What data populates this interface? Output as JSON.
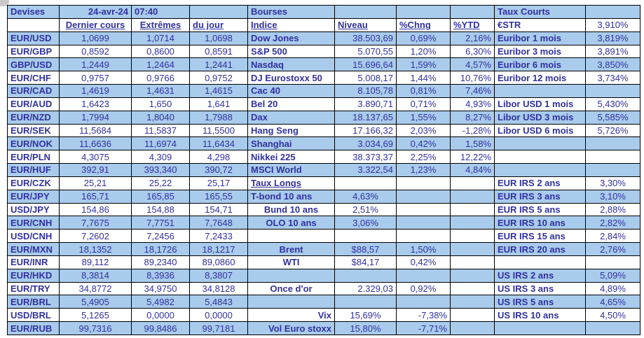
{
  "colors": {
    "row_blue": "#a9cbec",
    "text": "#3131a0",
    "border": "#000000"
  },
  "devises": {
    "title": "Devises",
    "date": "24-avr-24",
    "time": "07:40",
    "headers": [
      "Dernier cours",
      "Extrêmes",
      "du jour"
    ],
    "rows": [
      {
        "pair": "EUR/USD",
        "last": "1,0699",
        "extremes": "1,0714",
        "dujour": "1,0698"
      },
      {
        "pair": "EUR/GBP",
        "last": "0,8592",
        "extremes": "0,8600",
        "dujour": "0,8591"
      },
      {
        "pair": "GBP/USD",
        "last": "1,2449",
        "extremes": "1,2464",
        "dujour": "1,2441"
      },
      {
        "pair": "EUR/CHF",
        "last": "0,9757",
        "extremes": "0,9766",
        "dujour": "0,9752"
      },
      {
        "pair": "EUR/CAD",
        "last": "1,4619",
        "extremes": "1,4631",
        "dujour": "1,4615"
      },
      {
        "pair": "EUR/AUD",
        "last": "1,6423",
        "extremes": "1,650",
        "dujour": "1,641"
      },
      {
        "pair": "EUR/NZD",
        "last": "1,7994",
        "extremes": "1,8040",
        "dujour": "1,7988"
      },
      {
        "pair": "EUR/SEK",
        "last": "11,5684",
        "extremes": "11,5837",
        "dujour": "11,5500"
      },
      {
        "pair": "EUR/NOK",
        "last": "11,6636",
        "extremes": "11,6974",
        "dujour": "11,6434"
      },
      {
        "pair": "EUR/PLN",
        "last": "4,3075",
        "extremes": "4,309",
        "dujour": "4,298"
      },
      {
        "pair": "EUR/HUF",
        "last": "392,91",
        "extremes": "393,340",
        "dujour": "390,72"
      },
      {
        "pair": "EUR/CZK",
        "last": "25,21",
        "extremes": "25,22",
        "dujour": "25,17"
      },
      {
        "pair": "EUR/JPY",
        "last": "165,71",
        "extremes": "165,85",
        "dujour": "165,55"
      },
      {
        "pair": "USD/JPY",
        "last": "154,86",
        "extremes": "154,88",
        "dujour": "154,71"
      },
      {
        "pair": "EUR/CNH",
        "last": "7,7675",
        "extremes": "7,7751",
        "dujour": "7,7648"
      },
      {
        "pair": "USD/CNH",
        "last": "7,2602",
        "extremes": "7,2456",
        "dujour": "7,2433"
      },
      {
        "pair": "EUR/MXN",
        "last": "18,1352",
        "extremes": "18,1726",
        "dujour": "18,1217"
      },
      {
        "pair": "EUR/INR",
        "last": "89,112",
        "extremes": "89,2340",
        "dujour": "89,0860"
      },
      {
        "pair": "EUR/HKD",
        "last": "8,3814",
        "extremes": "8,3936",
        "dujour": "8,3807"
      },
      {
        "pair": "EUR/TRY",
        "last": "34,8772",
        "extremes": "34,9750",
        "dujour": "34,8128"
      },
      {
        "pair": "EUR/BRL",
        "last": "5,4905",
        "extremes": "5,4982",
        "dujour": "5,4843"
      },
      {
        "pair": "USD/BRL",
        "last": "5,1265",
        "extremes": "0,0000",
        "dujour": "0,0000"
      },
      {
        "pair": "EUR/RUB",
        "last": "99,7316",
        "extremes": "99,8486",
        "dujour": "99,7181"
      }
    ]
  },
  "bourses": {
    "title": "Bourses",
    "headers": [
      "Indice",
      "Niveau",
      "%Chng",
      "%YTD"
    ],
    "indices": [
      {
        "name": "Dow Jones",
        "level": "38.503,69",
        "chng": "0,69%",
        "ytd": "2,16%"
      },
      {
        "name": "S&P 500",
        "level": "5.070,55",
        "chng": "1,20%",
        "ytd": "6,30%"
      },
      {
        "name": "Nasdaq",
        "level": "15.696,64",
        "chng": "1,59%",
        "ytd": "4,57%"
      },
      {
        "name": "DJ Eurostoxx 50",
        "level": "5.008,17",
        "chng": "1,44%",
        "ytd": "10,76%"
      },
      {
        "name": "Cac 40",
        "level": "8.105,78",
        "chng": "0,81%",
        "ytd": "7,46%"
      },
      {
        "name": "Bel 20",
        "level": "3.890,71",
        "chng": "0,71%",
        "ytd": "4,93%"
      },
      {
        "name": "Dax",
        "level": "18.137,65",
        "chng": "1,55%",
        "ytd": "8,27%"
      },
      {
        "name": "Hang Seng",
        "level": "17.166,32",
        "chng": "2,03%",
        "ytd": "-1,28%"
      },
      {
        "name": "Shanghai",
        "level": "3.034,69",
        "chng": "0,42%",
        "ytd": "1,58%"
      },
      {
        "name": "Nikkei 225",
        "level": "38.373,37",
        "chng": "2,25%",
        "ytd": "12,22%"
      },
      {
        "name": "MSCI World",
        "level": "3.322,54",
        "chng": "1,23%",
        "ytd": "4,84%"
      }
    ],
    "taux_longs": {
      "title": "Taux Longs",
      "rows": [
        {
          "name": "T-bond 10 ans",
          "level": "4,63%"
        },
        {
          "name": "Bund 10 ans",
          "level": "2,51%"
        },
        {
          "name": "OLO 10 ans",
          "level": "3,06%"
        }
      ]
    },
    "commodities": [
      {
        "name": "Brent",
        "level": "$88,57",
        "chng": "1,50%"
      },
      {
        "name": "WTI",
        "level": "$84,17",
        "chng": "0,42%"
      },
      {
        "name": "Once d'or",
        "level": "2.329,03",
        "chng": "0,92%"
      }
    ],
    "volatility": [
      {
        "name": "Vix",
        "level": "15,69%",
        "chng": "-7,38%"
      },
      {
        "name": "Vol Euro stoxx",
        "level": "15,80%",
        "chng": "-7,71%"
      }
    ]
  },
  "taux_courts": {
    "title": "Taux Courts",
    "estr": {
      "name": "€STR",
      "value": "3,910%"
    },
    "euribor": [
      {
        "name": "Euribor 1 mois",
        "value": "3,819%"
      },
      {
        "name": "Euribor 3 mois",
        "value": "3,891%"
      },
      {
        "name": "Euribor 6 mois",
        "value": "3,850%"
      },
      {
        "name": "Euribor 12 mois",
        "value": "3,734%"
      }
    ],
    "libor_usd": [
      {
        "name": "Libor USD 1 mois",
        "value": "5,430%"
      },
      {
        "name": "Libor USD 3 mois",
        "value": "5,585%"
      },
      {
        "name": "Libor USD 6 mois",
        "value": "5,726%"
      }
    ],
    "eur_irs": [
      {
        "name": "EUR IRS 2 ans",
        "value": "3,30%"
      },
      {
        "name": "EUR IRS 3 ans",
        "value": "3,10%"
      },
      {
        "name": "EUR IRS 5 ans",
        "value": "2,88%"
      },
      {
        "name": "EUR IRS 10 ans",
        "value": "2,82%"
      },
      {
        "name": "EUR IRS 15 ans",
        "value": "2,84%"
      },
      {
        "name": "EUR IRS 20 ans",
        "value": "2,76%"
      }
    ],
    "us_irs": [
      {
        "name": "US IRS 2 ans",
        "value": "5,09%"
      },
      {
        "name": "US IRS 3 ans",
        "value": "4,89%"
      },
      {
        "name": "US IRS 5 ans",
        "value": "4,65%"
      },
      {
        "name": "US IRS 10 ans",
        "value": "4,50%"
      }
    ]
  }
}
